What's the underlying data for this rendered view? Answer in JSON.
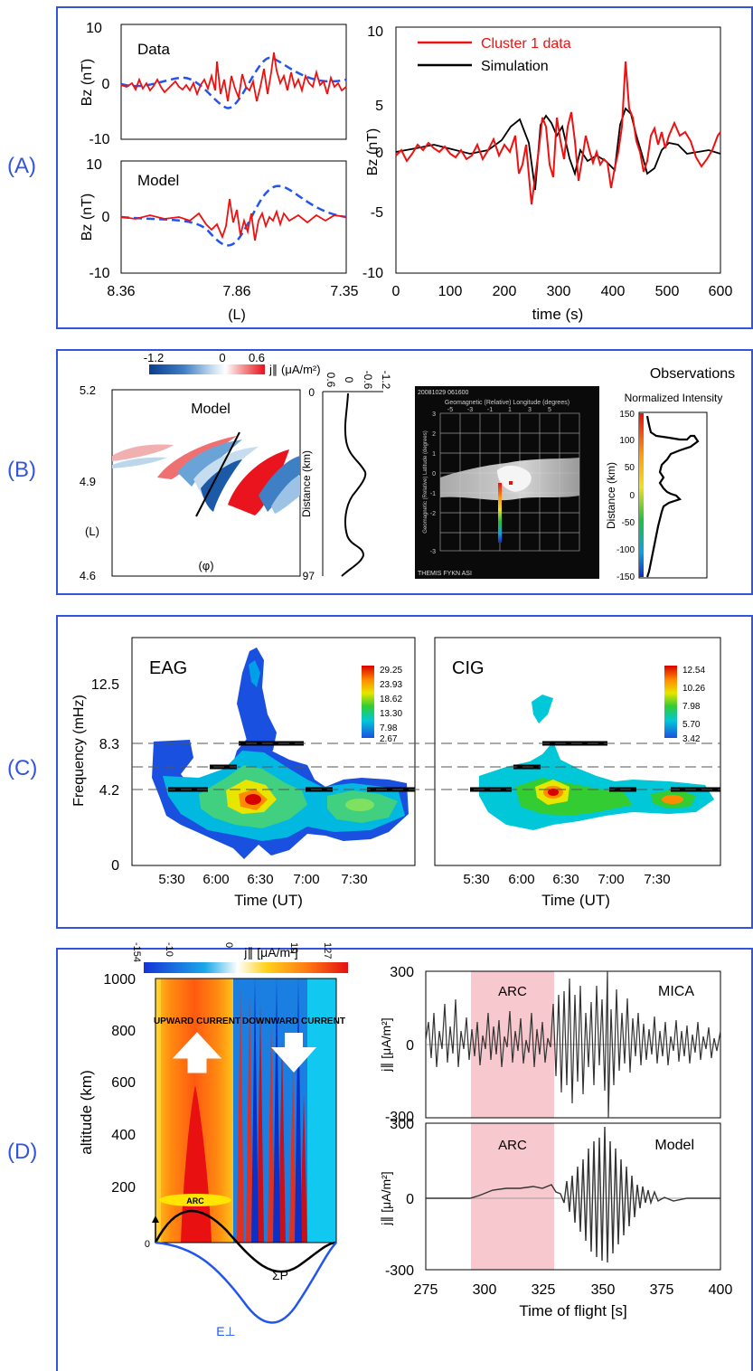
{
  "panel_labels": [
    "(A)",
    "(B)",
    "(C)",
    "(D)"
  ],
  "colors": {
    "frame": "#3355dd",
    "data_red": "#ee1111",
    "model_blue": "#2255ee",
    "sim_black": "#000000",
    "arc_shade": "#f7c9cf",
    "upward": "#ff6a1a",
    "downward": "#1a7fe0"
  },
  "panelA": {
    "top_left": {
      "label": "Data"
    },
    "bottom_left": {
      "label": "Model"
    },
    "left_ylabel": "Bz (nT)",
    "left_yticks": [
      "10",
      "0",
      "-10"
    ],
    "left_xticks": [
      "8.36",
      "7.86",
      "7.35"
    ],
    "left_xlabel": "(L)",
    "right": {
      "legend": [
        "Cluster 1 data",
        "Simulation"
      ],
      "ylabel": "Bz (nT)",
      "yticks": [
        "10",
        "5",
        "0",
        "-5",
        "-10"
      ],
      "xticks": [
        "0",
        "100",
        "200",
        "300",
        "400",
        "500",
        "600"
      ],
      "xlabel": "time (s)"
    }
  },
  "panelB": {
    "colorbar_ticks": [
      "-1.2",
      "0",
      "0.6"
    ],
    "colorbar_label": "j∥ (μA/m²)",
    "model_title": "Model",
    "yticks": [
      "5.2",
      "4.9",
      "4.6"
    ],
    "ylabel": "(L)",
    "xlabel": "(φ)",
    "profile_top_ticks": [
      "0.6",
      "0",
      "-0.6",
      "-1.2"
    ],
    "profile_yticks": [
      "0",
      "97"
    ],
    "profile_ylabel": "Distance (km)",
    "asi_stamp": "20081029 061600",
    "asi_title": "Geomagnetic (Relative) Longitude (degrees)",
    "asi_xticks": [
      "-5",
      "-3",
      "-1",
      "1",
      "3",
      "5"
    ],
    "asi_yticks": [
      "3",
      "2",
      "1",
      "0",
      "-1",
      "-2",
      "-3"
    ],
    "asi_ylabel": "Geomagnetic (Relative) Latitude (degrees)",
    "asi_footer": "THEMIS FYKN ASI",
    "obs_title": "Observations",
    "obs_subtitle": "Normalized Intensity",
    "obs_yticks": [
      "150",
      "100",
      "50",
      "0",
      "-50",
      "-100",
      "-150"
    ],
    "obs_ylabel": "Distance (km)"
  },
  "panelC": {
    "ylabel": "Frequency (mHz)",
    "yticks": [
      "0",
      "4.2",
      "8.3",
      "12.5"
    ],
    "xticks": [
      "5:30",
      "6:00",
      "6:30",
      "7:00",
      "7:30"
    ],
    "xlabel": "Time (UT)",
    "left_title": "EAG",
    "right_title": "CIG",
    "left_cbar": [
      "29.25",
      "23.93",
      "18.62",
      "13.30",
      "7.98",
      "2.67"
    ],
    "right_cbar": [
      "12.54",
      "10.26",
      "7.98",
      "5.70",
      "3.42"
    ]
  },
  "panelD": {
    "colorbar_ticks": [
      "-154",
      "-10",
      "0",
      "10",
      "127"
    ],
    "colorbar_label": "j∥ [μA/m²]",
    "ylabel": "altitude (km)",
    "yticks": [
      "1000",
      "800",
      "600",
      "400",
      "200",
      "0"
    ],
    "upward": "UPWARD CURRENT",
    "downward": "DOWNWARD CURRENT",
    "arc": "ARC",
    "sigma": "ΣP",
    "eperp": "E⊥",
    "top_label": "MICA",
    "bottom_label": "Model",
    "arc_label": "ARC",
    "right_ylabel": "j∥ [μA/m²]",
    "right_yticks": [
      "300",
      "0",
      "-300"
    ],
    "right_xticks": [
      "275",
      "300",
      "325",
      "350",
      "375",
      "400"
    ],
    "right_xlabel": "Time of flight [s]"
  }
}
